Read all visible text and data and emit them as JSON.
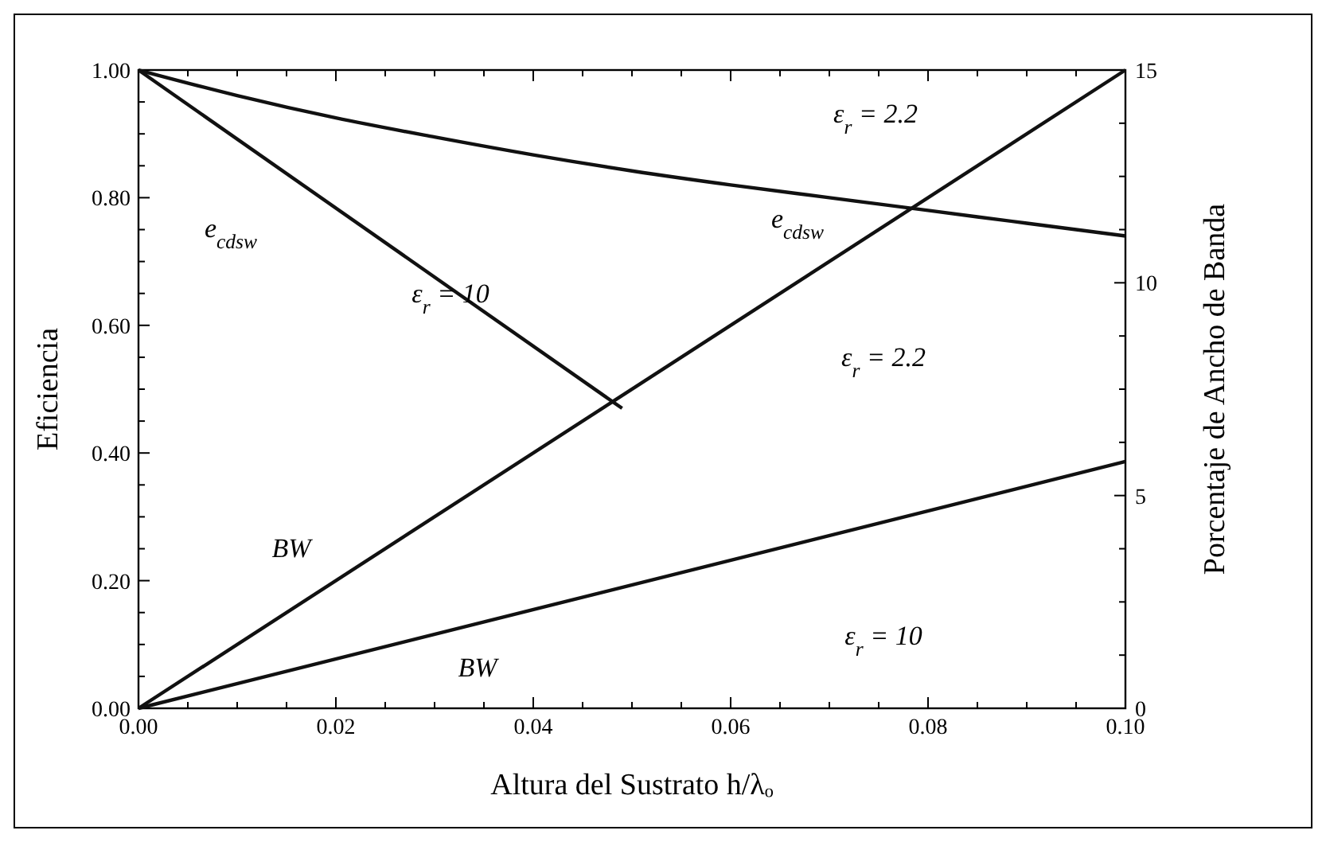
{
  "chart_data": {
    "type": "line",
    "xlabel": "Altura del Sustrato h/λₒ",
    "ylabel": "Eficiencia",
    "y2label": "Porcentaje de Ancho de Banda",
    "xlim": [
      0,
      0.1
    ],
    "ylim": [
      0,
      1
    ],
    "y2lim": [
      0,
      15
    ],
    "xticks": [
      {
        "value": 0,
        "label": "0.00"
      },
      {
        "value": 0.02,
        "label": "0.02"
      },
      {
        "value": 0.04,
        "label": "0.04"
      },
      {
        "value": 0.06,
        "label": "0.06"
      },
      {
        "value": 0.08,
        "label": "0.08"
      },
      {
        "value": 0.1,
        "label": "0.10"
      }
    ],
    "yticks": [
      {
        "value": 0,
        "label": "0.00"
      },
      {
        "value": 0.2,
        "label": "0.20"
      },
      {
        "value": 0.4,
        "label": "0.40"
      },
      {
        "value": 0.6,
        "label": "0.60"
      },
      {
        "value": 0.8,
        "label": "0.80"
      },
      {
        "value": 1,
        "label": "1.00"
      }
    ],
    "y2ticks": [
      0,
      5,
      10,
      15
    ],
    "grid": false,
    "series": [
      {
        "color": "#111111",
        "x": [
          0,
          0.01,
          0.02,
          0.03,
          0.04,
          0.05,
          0.06,
          0.07,
          0.08,
          0.09,
          0.1
        ],
        "values": [
          1,
          0.96,
          0.925,
          0.895,
          0.867,
          0.842,
          0.82,
          0.8,
          0.78,
          0.76,
          0.74
        ]
      },
      {
        "color": "#111111",
        "x": [
          0,
          0.049
        ],
        "values": [
          1,
          0.47
        ]
      },
      {
        "color": "#111111",
        "axis": "y2",
        "x": [
          0,
          0.1
        ],
        "values": [
          0,
          15
        ]
      },
      {
        "color": "#111111",
        "axis": "y2",
        "x": [
          0,
          0.1
        ],
        "values": [
          0,
          5.8
        ]
      }
    ],
    "annotations": [
      "ε$_{r}$ = 2.2",
      "e$_{cdsw}$",
      "ε$_{r}$ = 10",
      "e$_{cdsw}$",
      "ε$_{r}$ = 2.2",
      "BW",
      "BW",
      "ε$_{r}$ = 10"
    ]
  }
}
